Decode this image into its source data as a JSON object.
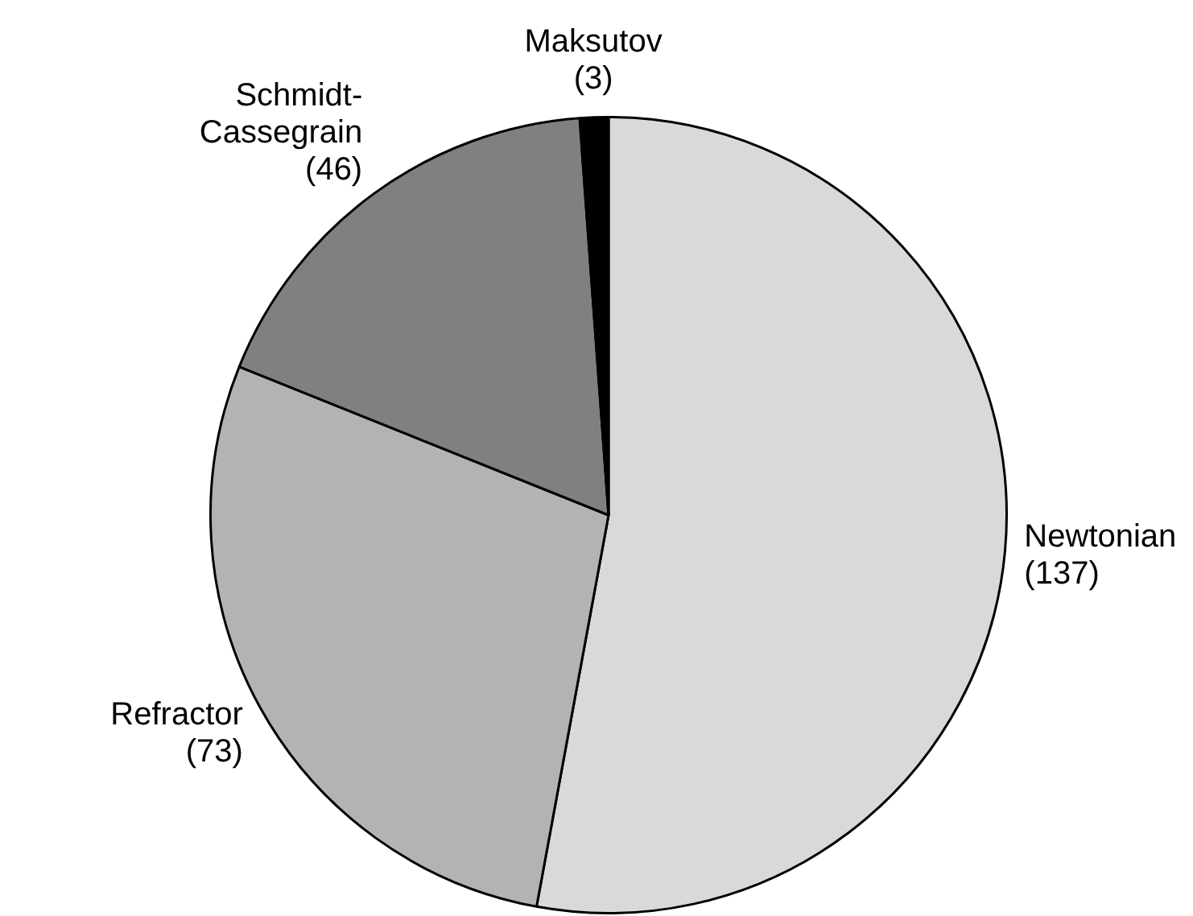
{
  "chart_data": {
    "type": "pie",
    "categories": [
      "Newtonian",
      "Refractor",
      "Schmidt-Cassegrain",
      "Maksutov"
    ],
    "values": [
      137,
      73,
      46,
      3
    ],
    "value_labels": [
      "(137)",
      "(73)",
      "(46)",
      "(3)"
    ],
    "colors": [
      "#d9d9d9",
      "#b3b3b3",
      "#808080",
      "#000000"
    ],
    "legend": false
  }
}
